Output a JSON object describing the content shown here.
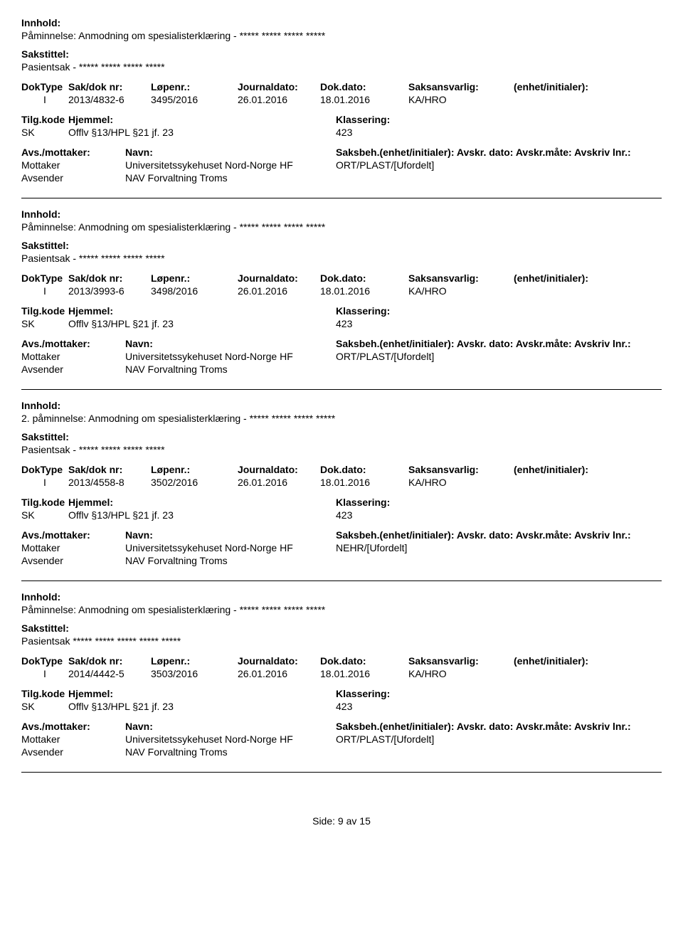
{
  "labels": {
    "innhold": "Innhold:",
    "sakstittel": "Sakstittel:",
    "doktype": "DokType",
    "sakdok": "Sak/dok nr:",
    "lopenr": "Løpenr.:",
    "journaldato": "Journaldato:",
    "dokdato": "Dok.dato:",
    "saksansvarlig": "Saksansvarlig:",
    "enhet_initialer": "(enhet/initialer):",
    "tilgkode": "Tilg.kode",
    "hjemmel": "Hjemmel:",
    "klassering": "Klassering:",
    "avs_mottaker": "Avs./mottaker:",
    "navn": "Navn:",
    "saksbeh_line": "Saksbeh.(enhet/initialer): Avskr. dato:  Avskr.måte:  Avskriv lnr.:",
    "mottaker": "Mottaker",
    "avsender": "Avsender",
    "side": "Side:"
  },
  "footer": {
    "page": "9",
    "of": "av",
    "total": "15"
  },
  "records": [
    {
      "innhold": "Påminnelse: Anmodning om spesialisterklæring - ***** ***** ***** *****",
      "sakstittel": "Pasientsak - ***** ***** ***** *****",
      "doktype": "I",
      "sakdok": "2013/4832-6",
      "lopenr": "3495/2016",
      "journaldato": "26.01.2016",
      "dokdato": "18.01.2016",
      "saksansvarlig": "KA/HRO",
      "tilgkode": "SK",
      "hjemmel": "Offlv §13/HPL §21 jf. 23",
      "klassering": "423",
      "parties": [
        {
          "role": "Mottaker",
          "name": "Universitetssykehuset Nord-Norge HF",
          "saksbeh": "ORT/PLAST/[Ufordelt]"
        },
        {
          "role": "Avsender",
          "name": "NAV Forvaltning Troms",
          "saksbeh": ""
        }
      ]
    },
    {
      "innhold": "Påminnelse: Anmodning om spesialisterklæring - ***** ***** ***** *****",
      "sakstittel": "Pasientsak - ***** ***** ***** *****",
      "doktype": "I",
      "sakdok": "2013/3993-6",
      "lopenr": "3498/2016",
      "journaldato": "26.01.2016",
      "dokdato": "18.01.2016",
      "saksansvarlig": "KA/HRO",
      "tilgkode": "SK",
      "hjemmel": "Offlv §13/HPL §21 jf. 23",
      "klassering": "423",
      "parties": [
        {
          "role": "Mottaker",
          "name": "Universitetssykehuset Nord-Norge HF",
          "saksbeh": "ORT/PLAST/[Ufordelt]"
        },
        {
          "role": "Avsender",
          "name": "NAV Forvaltning Troms",
          "saksbeh": ""
        }
      ]
    },
    {
      "innhold": "2. påminnelse: Anmodning om spesialisterklæring - ***** ***** ***** *****",
      "sakstittel": "Pasientsak - ***** ***** ***** *****",
      "doktype": "I",
      "sakdok": "2013/4558-8",
      "lopenr": "3502/2016",
      "journaldato": "26.01.2016",
      "dokdato": "18.01.2016",
      "saksansvarlig": "KA/HRO",
      "tilgkode": "SK",
      "hjemmel": "Offlv §13/HPL §21 jf. 23",
      "klassering": "423",
      "parties": [
        {
          "role": "Mottaker",
          "name": "Universitetssykehuset Nord-Norge HF",
          "saksbeh": "NEHR/[Ufordelt]"
        },
        {
          "role": "Avsender",
          "name": "NAV Forvaltning Troms",
          "saksbeh": ""
        }
      ]
    },
    {
      "innhold": "Påminnelse: Anmodning om spesialisterklæring - ***** ***** ***** *****",
      "sakstittel": "Pasientsak ***** ***** ***** ***** *****",
      "doktype": "I",
      "sakdok": "2014/4442-5",
      "lopenr": "3503/2016",
      "journaldato": "26.01.2016",
      "dokdato": "18.01.2016",
      "saksansvarlig": "KA/HRO",
      "tilgkode": "SK",
      "hjemmel": "Offlv §13/HPL §21 jf. 23",
      "klassering": "423",
      "parties": [
        {
          "role": "Mottaker",
          "name": "Universitetssykehuset Nord-Norge HF",
          "saksbeh": "ORT/PLAST/[Ufordelt]"
        },
        {
          "role": "Avsender",
          "name": "NAV Forvaltning Troms",
          "saksbeh": ""
        }
      ]
    }
  ]
}
